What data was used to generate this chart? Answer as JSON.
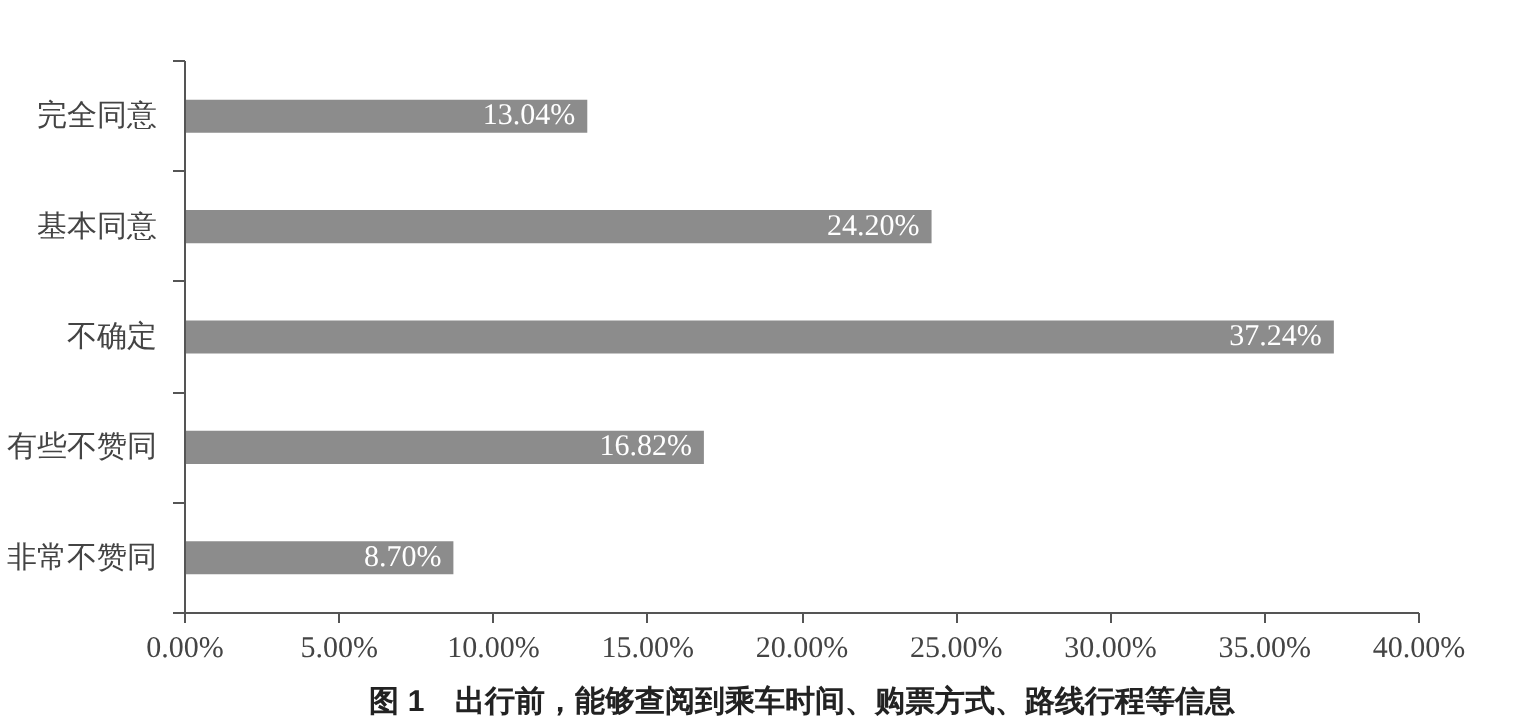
{
  "chart_data": {
    "type": "bar",
    "orientation": "horizontal",
    "title": "图 1　出行前，能够查阅到乘车时间、购票方式、路线行程等信息",
    "categories": [
      "完全同意",
      "基本同意",
      "不确定",
      "有些不赞同",
      "非常不赞同"
    ],
    "values": [
      13.04,
      24.2,
      37.24,
      16.82,
      8.7
    ],
    "value_labels": [
      "13.04%",
      "24.20%",
      "37.24%",
      "16.82%",
      "8.70%"
    ],
    "color": "#8c8c8c",
    "xlim": [
      0,
      40
    ],
    "xticks": [
      {
        "value": 0,
        "label": "0.00%"
      },
      {
        "value": 5,
        "label": "5.00%"
      },
      {
        "value": 10,
        "label": "10.00%"
      },
      {
        "value": 15,
        "label": "15.00%"
      },
      {
        "value": 20,
        "label": "20.00%"
      },
      {
        "value": 25,
        "label": "25.00%"
      },
      {
        "value": 30,
        "label": "30.00%"
      },
      {
        "value": 35,
        "label": "35.00%"
      },
      {
        "value": 40,
        "label": "40.00%"
      }
    ],
    "grid": false
  }
}
